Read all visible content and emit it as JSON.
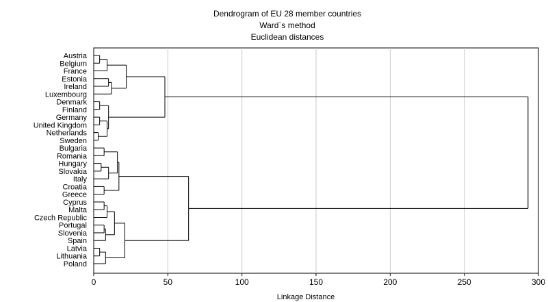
{
  "chart_data": {
    "type": "dendrogram",
    "title": "Dendrogram of EU 28 member countries",
    "subtitle1": "Ward`s method",
    "subtitle2": "Euclidean distances",
    "xlabel": "Linkage Distance",
    "xlim": [
      0,
      300
    ],
    "xticks": [
      0,
      50,
      100,
      150,
      200,
      250,
      300
    ],
    "grid": "vertical",
    "leaves": [
      "Austria",
      "Belgium",
      "France",
      "Estonia",
      "Ireland",
      "Luxembourg",
      "Denmark",
      "Finland",
      "Germany",
      "United Kingdom",
      "Netherlands",
      "Sweden",
      "Bulgaria",
      "Romania",
      "Hungary",
      "Slovakia",
      "Italy",
      "Croatia",
      "Greece",
      "Cyprus",
      "Malta",
      "Czech Republic",
      "Portugal",
      "Slovenia",
      "Spain",
      "Latvia",
      "Lithuania",
      "Poland"
    ],
    "tree": {
      "h": 293,
      "c": [
        {
          "h": 48,
          "c": [
            {
              "h": 22,
              "c": [
                {
                  "h": 9,
                  "c": [
                    {
                      "h": 4,
                      "c": [
                        "Austria",
                        "Belgium"
                      ]
                    },
                    "France"
                  ]
                },
                {
                  "h": 12,
                  "c": [
                    {
                      "h": 10,
                      "c": [
                        "Estonia",
                        "Ireland"
                      ]
                    },
                    "Luxembourg"
                  ]
                }
              ]
            },
            {
              "h": 10,
              "c": [
                {
                  "h": 4,
                  "c": [
                    "Denmark",
                    "Finland"
                  ]
                },
                {
                  "h": 9,
                  "c": [
                    {
                      "h": 4,
                      "c": [
                        "Germany",
                        "United Kingdom"
                      ]
                    },
                    {
                      "h": 3,
                      "c": [
                        "Netherlands",
                        "Sweden"
                      ]
                    }
                  ]
                }
              ]
            }
          ]
        },
        {
          "h": 64,
          "c": [
            {
              "h": 17,
              "c": [
                {
                  "h": 16,
                  "c": [
                    {
                      "h": 7,
                      "c": [
                        "Bulgaria",
                        "Romania"
                      ]
                    },
                    {
                      "h": 10,
                      "c": [
                        {
                          "h": 5,
                          "c": [
                            "Hungary",
                            "Slovakia"
                          ]
                        },
                        "Italy"
                      ]
                    }
                  ]
                },
                {
                  "h": 7,
                  "c": [
                    "Croatia",
                    "Greece"
                  ]
                }
              ]
            },
            {
              "h": 21,
              "c": [
                {
                  "h": 14,
                  "c": [
                    {
                      "h": 9,
                      "c": [
                        {
                          "h": 7,
                          "c": [
                            "Cyprus",
                            "Malta"
                          ]
                        },
                        "Czech Republic"
                      ]
                    },
                    {
                      "h": 8,
                      "c": [
                        {
                          "h": 7,
                          "c": [
                            "Portugal",
                            "Slovenia"
                          ]
                        },
                        "Spain"
                      ]
                    }
                  ]
                },
                {
                  "h": 8,
                  "c": [
                    {
                      "h": 4,
                      "c": [
                        "Latvia",
                        "Lithuania"
                      ]
                    },
                    "Poland"
                  ]
                }
              ]
            }
          ]
        }
      ]
    }
  }
}
